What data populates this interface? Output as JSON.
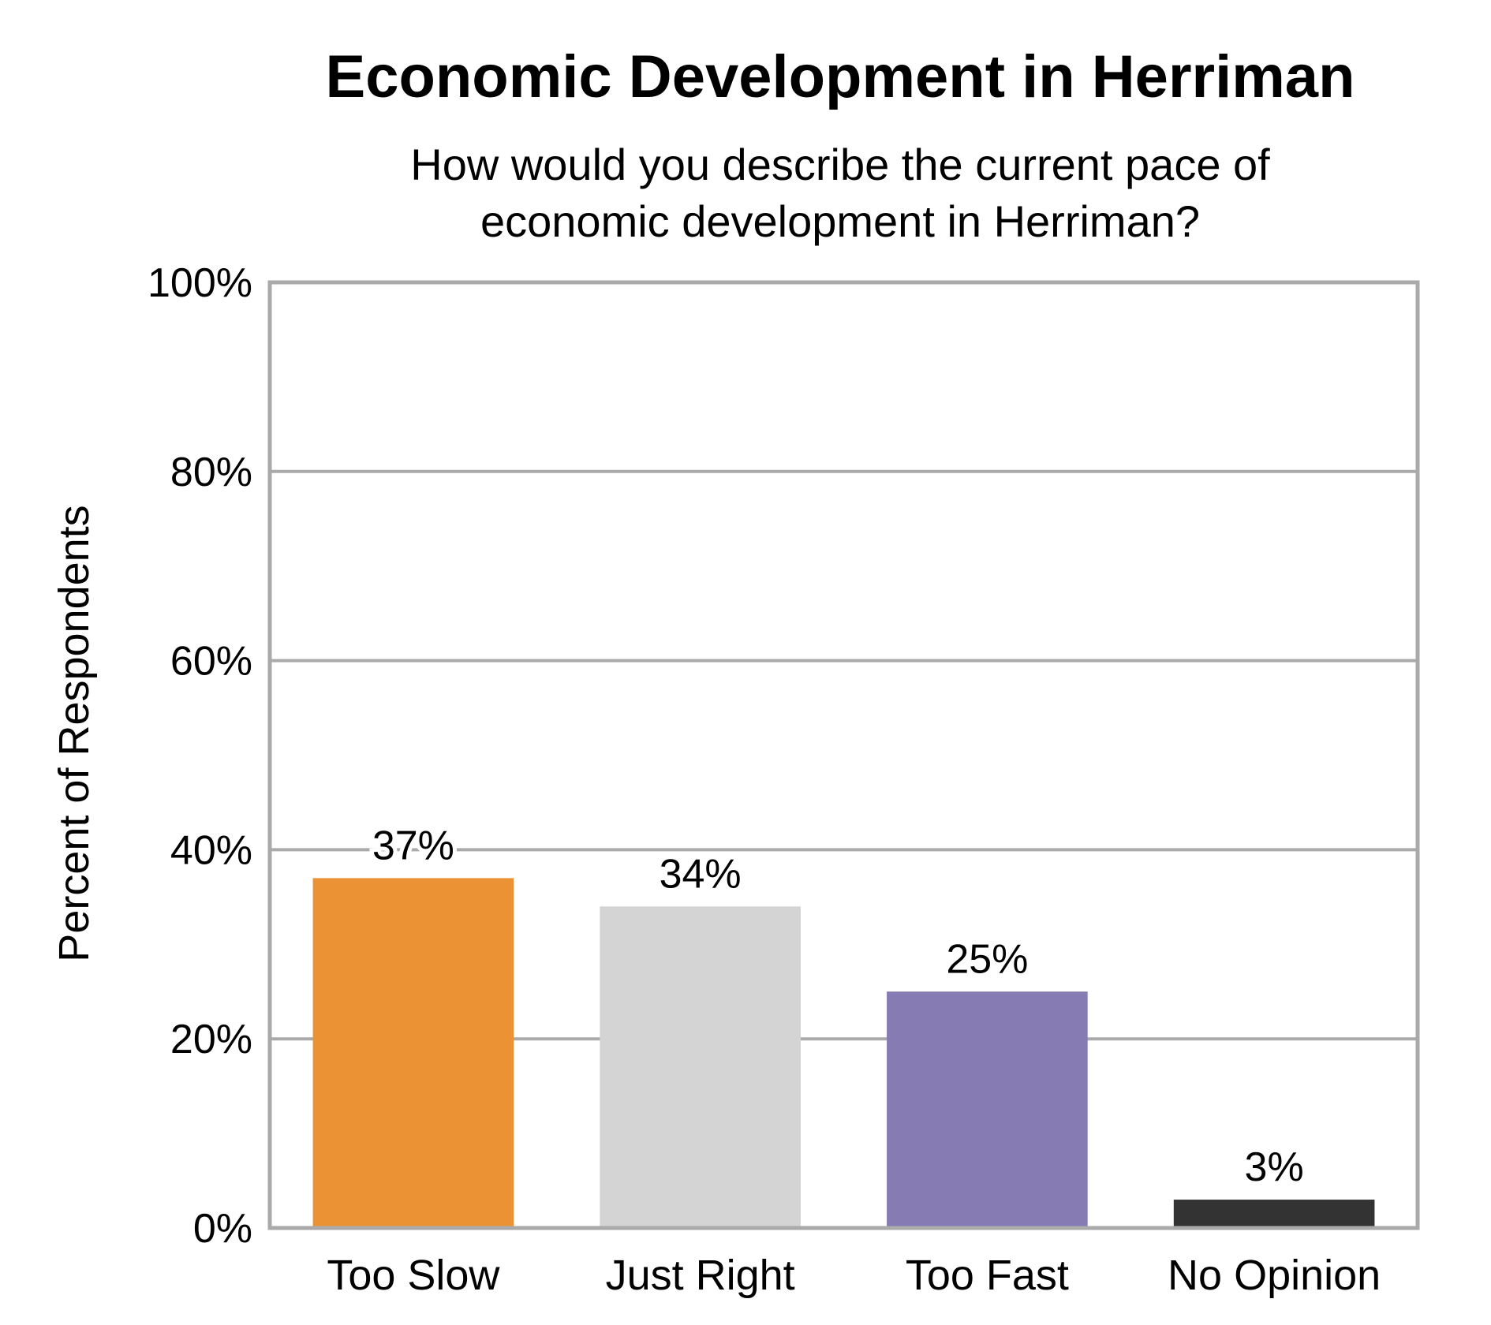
{
  "chart_data": {
    "type": "bar",
    "title": "Economic Development in Herriman",
    "subtitle": [
      "How would you describe the current pace of",
      "economic development in Herriman?"
    ],
    "xlabel": "",
    "ylabel": "Percent of Respondents",
    "categories": [
      "Too Slow",
      "Just Right",
      "Too Fast",
      "No Opinion"
    ],
    "values": [
      37,
      34,
      25,
      3
    ],
    "data_labels": [
      "37%",
      "34%",
      "25%",
      "3%"
    ],
    "colors": [
      "#EB9334",
      "#D4D4D4",
      "#877BB4",
      "#333333"
    ],
    "ylim": [
      0,
      100
    ],
    "yticks": [
      0,
      20,
      40,
      60,
      80,
      100
    ],
    "ytick_labels": [
      "0%",
      "20%",
      "40%",
      "60%",
      "80%",
      "100%"
    ],
    "grid": true,
    "grid_color": "#AAAAAA"
  }
}
